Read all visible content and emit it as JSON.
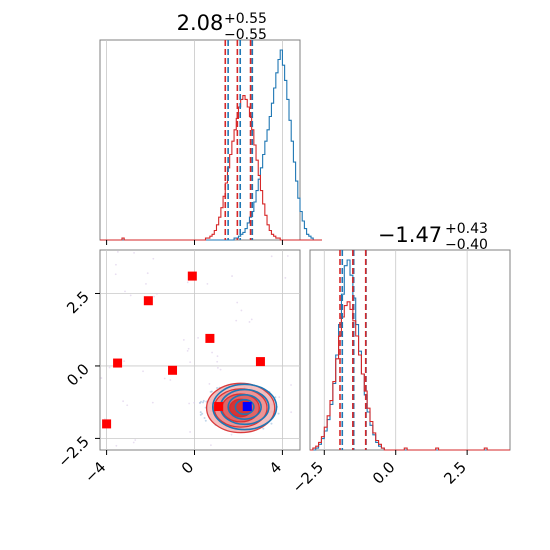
{
  "chart_data": [
    {
      "panel": "marginal-x",
      "type": "histogram",
      "title_value": "2.08",
      "title_plus": "+0.55",
      "title_minus": "−0.55",
      "xlim": [
        -4.3,
        4.8
      ],
      "grid": true,
      "series": [
        {
          "color": "#1f77b4",
          "quantiles": [
            1.53,
            2.08,
            2.63
          ],
          "bins_x0": -4.3,
          "bin_width": 0.1,
          "heights": [
            0,
            0,
            0,
            0,
            0,
            0,
            0,
            0,
            0,
            0,
            0,
            0,
            0,
            0,
            0,
            0,
            0,
            0,
            0,
            0,
            0,
            0,
            0,
            0,
            0,
            0,
            0,
            0,
            0,
            0,
            0,
            0,
            0,
            0,
            0,
            0,
            0,
            0,
            0,
            0,
            0,
            0,
            0,
            0,
            0,
            0,
            0,
            0,
            0,
            0,
            0,
            0,
            0,
            0,
            0,
            0,
            0,
            0,
            0,
            0,
            0,
            1,
            1,
            2,
            3,
            4,
            6,
            9,
            12,
            15,
            20,
            26,
            32,
            38,
            45,
            52,
            58,
            65,
            72,
            80,
            88,
            95,
            100,
            92,
            84,
            74,
            63,
            52,
            41,
            31,
            22,
            15,
            10,
            6,
            3,
            2,
            1,
            0,
            0,
            0,
            0
          ]
        },
        {
          "color": "#d62728",
          "quantiles": [
            1.4,
            1.95,
            2.55
          ],
          "bins_x0": -4.3,
          "bin_width": 0.1,
          "heights": [
            0,
            0,
            0,
            0,
            0,
            0,
            0,
            0,
            0,
            0,
            1,
            0,
            0,
            0,
            0,
            0,
            0,
            0,
            0,
            0,
            0,
            0,
            0,
            0,
            0,
            0,
            0,
            0,
            0,
            0,
            0,
            0,
            0,
            0,
            0,
            0,
            0,
            0,
            0,
            0,
            0,
            0,
            0,
            0,
            0,
            0,
            0,
            0,
            1,
            1,
            2,
            3,
            5,
            8,
            12,
            17,
            23,
            30,
            38,
            45,
            52,
            58,
            64,
            70,
            74,
            76,
            74,
            70,
            65,
            58,
            50,
            42,
            34,
            26,
            19,
            13,
            8,
            5,
            3,
            2,
            1,
            1,
            0,
            0,
            0,
            0,
            0,
            0,
            0,
            0,
            0,
            0,
            0,
            0,
            0,
            0,
            0,
            0,
            0,
            0,
            0
          ]
        }
      ]
    },
    {
      "panel": "joint",
      "type": "scatter",
      "xlim": [
        -4.3,
        4.8
      ],
      "ylim": [
        -2.9,
        4.0
      ],
      "x_ticks": [
        "−4",
        "0",
        "4"
      ],
      "x_tick_values": [
        -4,
        0,
        4
      ],
      "y_ticks": [
        "−2.5",
        "0.0",
        "2.5"
      ],
      "y_tick_values": [
        -2.5,
        0.0,
        2.5
      ],
      "grid": true,
      "red_points": [
        {
          "x": -0.1,
          "y": 3.1
        },
        {
          "x": -2.1,
          "y": 2.25
        },
        {
          "x": 0.7,
          "y": 0.95
        },
        {
          "x": -3.5,
          "y": 0.1
        },
        {
          "x": -1.0,
          "y": -0.15
        },
        {
          "x": 3.0,
          "y": 0.15
        },
        {
          "x": -4.0,
          "y": -2.0
        },
        {
          "x": 1.1,
          "y": -1.4
        }
      ],
      "blue_point": {
        "x": 2.4,
        "y": -1.4
      },
      "contour_center": {
        "x": 2.1,
        "y": -1.45
      }
    },
    {
      "panel": "marginal-y",
      "type": "histogram",
      "title_value": "−1.47",
      "title_plus": "+0.43",
      "title_minus": "−0.40",
      "xlim": [
        -3.0,
        4.0
      ],
      "x_ticks": [
        "−2.5",
        "0.0",
        "2.5"
      ],
      "x_tick_values": [
        -2.5,
        0.0,
        2.5
      ],
      "grid": true,
      "series": [
        {
          "color": "#1f77b4",
          "quantiles": [
            -1.87,
            -1.47,
            -1.04
          ],
          "bins_x0": -3.0,
          "bin_width": 0.1,
          "heights": [
            0,
            0,
            1,
            3,
            6,
            10,
            16,
            24,
            35,
            50,
            66,
            82,
            97,
            100,
            92,
            80,
            66,
            52,
            40,
            29,
            20,
            13,
            8,
            4,
            2,
            1,
            0,
            0,
            0,
            0,
            0,
            0,
            0,
            0,
            0,
            0,
            0,
            0,
            0,
            0,
            0,
            0,
            0,
            0,
            0,
            0,
            0,
            0,
            0,
            0,
            0,
            0,
            0,
            0,
            0,
            0,
            0,
            0,
            0,
            0,
            0,
            0,
            0,
            0,
            0,
            0,
            0,
            0,
            0,
            0
          ]
        },
        {
          "color": "#d62728",
          "quantiles": [
            -1.95,
            -1.5,
            -1.05
          ],
          "bins_x0": -3.0,
          "bin_width": 0.1,
          "heights": [
            0,
            1,
            2,
            4,
            7,
            12,
            18,
            26,
            36,
            48,
            60,
            70,
            76,
            78,
            74,
            68,
            60,
            50,
            40,
            31,
            22,
            15,
            9,
            5,
            3,
            1,
            0,
            0,
            0,
            0,
            0,
            0,
            0,
            1,
            0,
            0,
            0,
            0,
            0,
            0,
            0,
            0,
            0,
            0,
            1,
            0,
            0,
            0,
            0,
            0,
            0,
            0,
            0,
            0,
            0,
            0,
            0,
            0,
            0,
            0,
            0,
            1,
            0,
            0,
            0,
            0,
            0,
            0,
            0,
            0
          ]
        }
      ]
    }
  ]
}
